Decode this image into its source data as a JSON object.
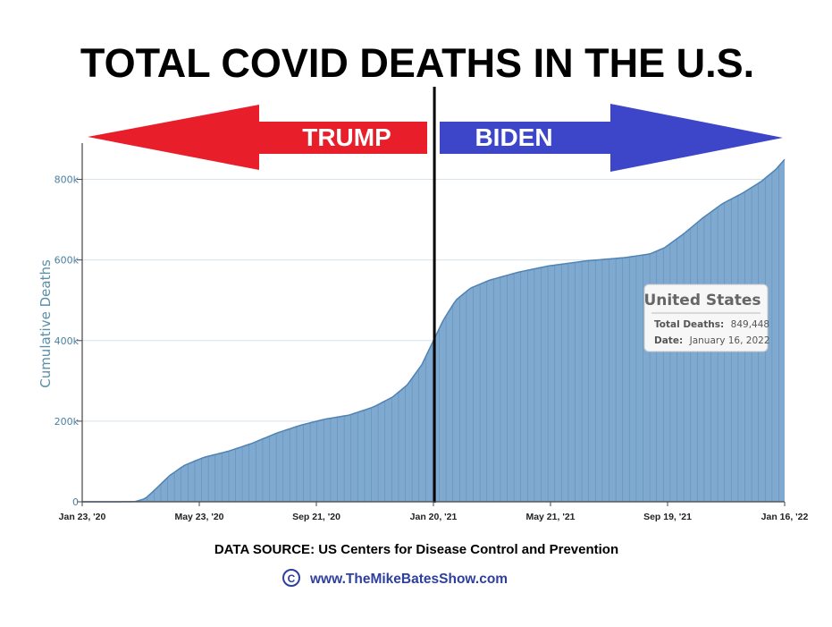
{
  "heading": "TOTAL COVID DEATHS IN THE U.S.",
  "arrows": {
    "left_label": "TRUMP",
    "right_label": "BIDEN",
    "left_color": "#e81e2a",
    "right_color": "#3d45c9"
  },
  "colors": {
    "area_fill": "#80a9cf",
    "area_line": "#4f83b5",
    "grid": "#d8e2ea",
    "divider": "#000000"
  },
  "chart_data": {
    "type": "area",
    "title": "TOTAL COVID DEATHS IN THE U.S.",
    "xlabel": "",
    "ylabel": "Cumulative Deaths",
    "x_ticks": [
      "Jan 23, '20",
      "May 23, '20",
      "Sep 21, '20",
      "Jan 20, '21",
      "May 21, '21",
      "Sep 19, '21",
      "Jan 16, '22"
    ],
    "y_ticks": [
      "0",
      "200k",
      "400k",
      "600k",
      "800k"
    ],
    "y_tick_values": [
      0,
      200000,
      400000,
      600000,
      800000
    ],
    "ylim": [
      0,
      890000
    ],
    "x_range_days": [
      0,
      724
    ],
    "divider_day": 363,
    "series": [
      {
        "name": "United States",
        "points": [
          [
            0,
            0
          ],
          [
            35,
            0
          ],
          [
            55,
            500
          ],
          [
            65,
            8000
          ],
          [
            75,
            30000
          ],
          [
            90,
            65000
          ],
          [
            105,
            90000
          ],
          [
            125,
            110000
          ],
          [
            150,
            125000
          ],
          [
            175,
            145000
          ],
          [
            200,
            170000
          ],
          [
            225,
            190000
          ],
          [
            250,
            205000
          ],
          [
            275,
            215000
          ],
          [
            300,
            235000
          ],
          [
            320,
            260000
          ],
          [
            335,
            290000
          ],
          [
            350,
            340000
          ],
          [
            363,
            405000
          ],
          [
            372,
            450000
          ],
          [
            385,
            500000
          ],
          [
            400,
            530000
          ],
          [
            420,
            550000
          ],
          [
            450,
            570000
          ],
          [
            480,
            585000
          ],
          [
            520,
            598000
          ],
          [
            560,
            606000
          ],
          [
            585,
            615000
          ],
          [
            600,
            630000
          ],
          [
            620,
            665000
          ],
          [
            640,
            705000
          ],
          [
            660,
            740000
          ],
          [
            680,
            765000
          ],
          [
            700,
            795000
          ],
          [
            715,
            825000
          ],
          [
            724,
            849448
          ]
        ]
      }
    ],
    "annotations": [
      "United States",
      "Total Deaths: 849,448",
      "Date: January 16, 2022"
    ]
  },
  "tooltip": {
    "title": "United States",
    "deaths_label": "Total Deaths:",
    "deaths_value": "849,448",
    "date_label": "Date:",
    "date_value": "January 16, 2022"
  },
  "footer": {
    "source": "DATA SOURCE: US Centers for Disease Control and Prevention",
    "copyright_symbol": "C",
    "website": "www.TheMikeBatesShow.com"
  }
}
